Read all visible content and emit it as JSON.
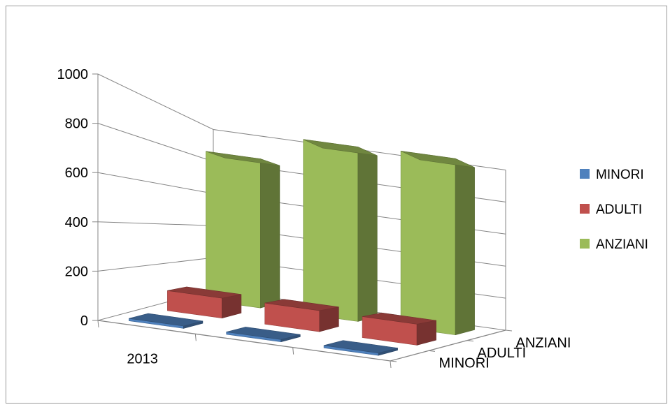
{
  "chart_data": {
    "type": "bar",
    "variant": "3d-column",
    "categories": [
      "2013",
      "",
      ""
    ],
    "series": [
      {
        "name": "MINORI",
        "values": [
          10,
          10,
          10
        ],
        "color": "#4F81BD"
      },
      {
        "name": "ADULTI",
        "values": [
          95,
          100,
          100
        ],
        "color": "#C0504D"
      },
      {
        "name": "ANZIANI",
        "values": [
          820,
          960,
          970
        ],
        "color": "#9BBB59"
      }
    ],
    "y_ticks": [
      "0",
      "200",
      "400",
      "600",
      "800",
      "1000"
    ],
    "ylim": [
      0,
      1000
    ],
    "depth_labels": [
      "MINORI",
      "ADULTI",
      "ANZIANI"
    ],
    "grid": true,
    "legend": {
      "position": "right",
      "items": [
        {
          "label": "MINORI",
          "color": "#4F81BD"
        },
        {
          "label": "ADULTI",
          "color": "#C0504D"
        },
        {
          "label": "ANZIANI",
          "color": "#9BBB59"
        }
      ]
    }
  }
}
